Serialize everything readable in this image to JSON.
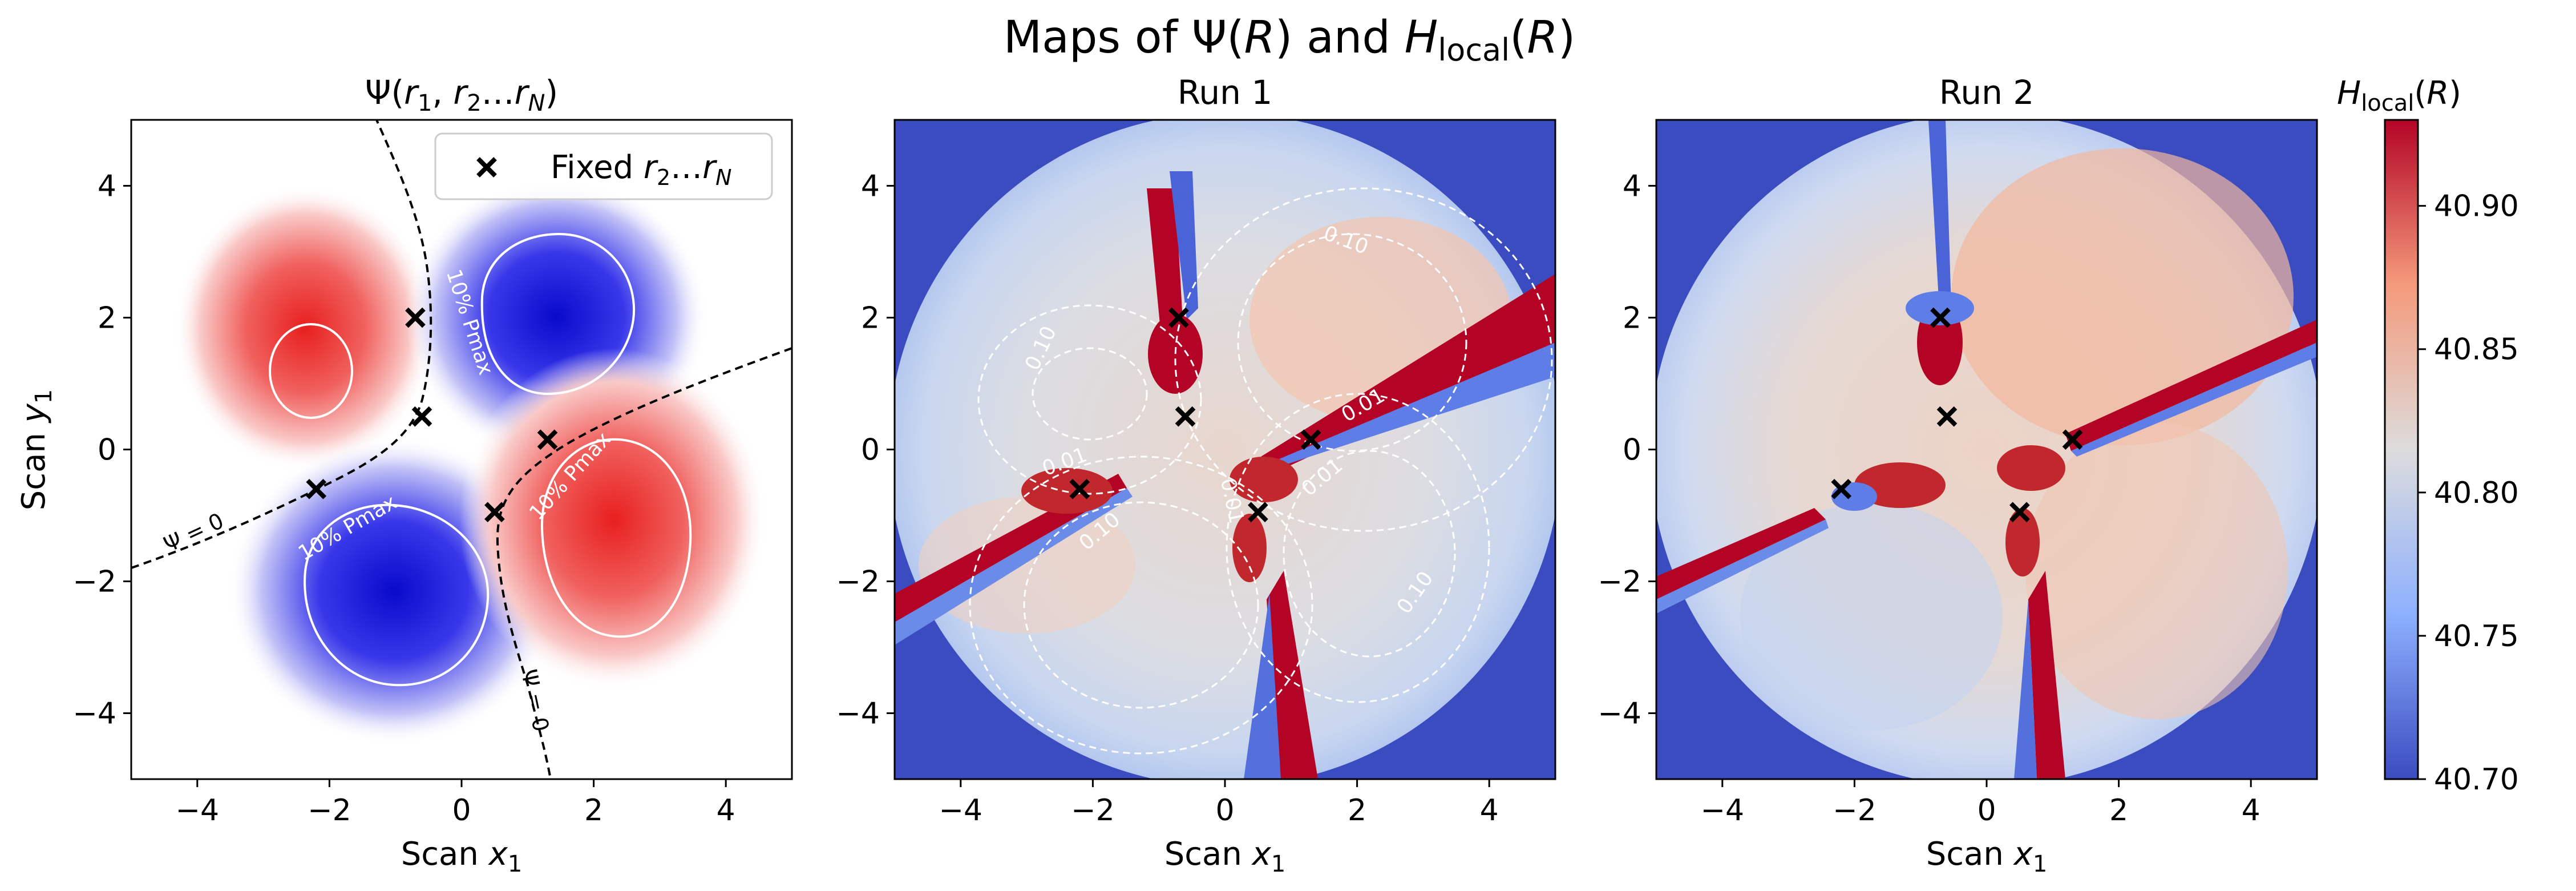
{
  "suptitle": "Maps of Ψ(R) and H_local(R)",
  "colors": {
    "psi_positive": "#e8201f",
    "psi_negative": "#1414d8",
    "marker": "#000000",
    "nodal_line": "#000000",
    "contour": "#ffffff"
  },
  "panels": [
    {
      "id": "psi",
      "title": "Ψ(r1, r2…rN)",
      "xlabel": "Scan x1",
      "ylabel": "Scan y1",
      "legend_label": "Fixed r2…rN",
      "nodal_label_1": "Ψ = 0",
      "nodal_label_2": "Ψ = 0",
      "contour_label_1": "10% Pmax",
      "contour_label_2": "10% Pmax",
      "contour_label_3": "10% Pmax"
    },
    {
      "id": "run1",
      "title": "Run 1",
      "xlabel": "Scan x1",
      "contour_labels": [
        "0.10",
        "0.10",
        "0.01",
        "0.01",
        "0.10",
        "0.01",
        "0.10",
        "0.01"
      ]
    },
    {
      "id": "run2",
      "title": "Run 2",
      "xlabel": "Scan x1"
    }
  ],
  "chart_data": {
    "type": "heatmap",
    "xlim": [
      -5,
      5
    ],
    "ylim": [
      -5,
      5
    ],
    "xticks": [
      -4,
      -2,
      0,
      2,
      4
    ],
    "yticks": [
      -4,
      -2,
      0,
      2,
      4
    ],
    "fixed_electrons": [
      {
        "x": -0.7,
        "y": 2.0
      },
      {
        "x": -0.6,
        "y": 0.5
      },
      {
        "x": -2.2,
        "y": -0.6
      },
      {
        "x": 1.3,
        "y": 0.15
      },
      {
        "x": 0.5,
        "y": -0.95
      }
    ],
    "psi_lobes": [
      {
        "sign": "positive",
        "x": -2.3,
        "y": 1.1
      },
      {
        "sign": "negative",
        "x": 1.2,
        "y": 1.9
      },
      {
        "sign": "negative",
        "x": -0.9,
        "y": -2.2
      },
      {
        "sign": "positive",
        "x": 2.3,
        "y": -1.3
      }
    ],
    "colorbar": {
      "label": "H_local(R)",
      "min": 40.7,
      "max": 40.93,
      "ticks": [
        "40.70",
        "40.75",
        "40.80",
        "40.85",
        "40.90"
      ],
      "colormap": "coolwarm"
    }
  }
}
